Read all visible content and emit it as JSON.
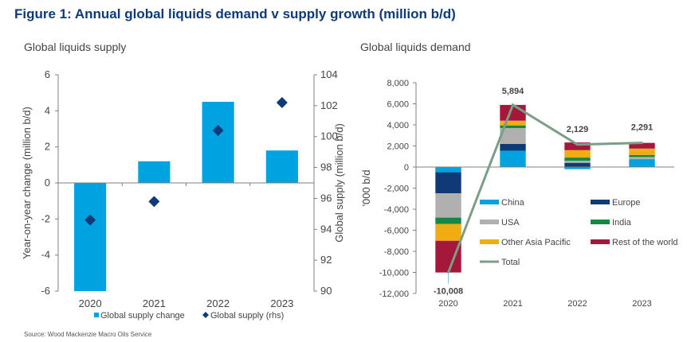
{
  "figure": {
    "title": "Figure 1: Annual global liquids demand v supply growth (million b/d)",
    "source": "Source: Wood Mackenzie Macro Oils Service"
  },
  "colors": {
    "title": "#0f3a78",
    "supply_bar": "#00a3e0",
    "supply_diamond": "#0f3a78",
    "axis": "#808080",
    "China": "#00a3e0",
    "Europe": "#0f3a78",
    "USA": "#b0b0b0",
    "India": "#138a43",
    "Other Asia Pacific": "#f0ad12",
    "Rest of the world": "#a4183c",
    "Total": "#7a9e86"
  },
  "chart_data": [
    {
      "type": "bar",
      "title": "Global liquids supply",
      "categories": [
        "2020",
        "2021",
        "2022",
        "2023"
      ],
      "series": [
        {
          "name": "Global supply change",
          "axis": "left",
          "type": "bar",
          "values": [
            -6.0,
            1.2,
            4.5,
            1.8
          ]
        },
        {
          "name": "Global supply (rhs)",
          "axis": "right",
          "type": "scatter",
          "marker": "diamond",
          "values": [
            94.6,
            95.8,
            100.4,
            102.2
          ]
        }
      ],
      "ylabel": "Year-on-year change (million b/d)",
      "ylabel_right": "Global supply (million b/d)",
      "ylim": [
        -6,
        6
      ],
      "yticks": [
        "6",
        "4",
        "2",
        "0",
        "-2",
        "-4",
        "-6"
      ],
      "ytick_values": [
        6,
        4,
        2,
        0,
        -2,
        -4,
        -6
      ],
      "ylim_right": [
        90,
        104
      ],
      "yticks_right": [
        "104",
        "102",
        "100",
        "98",
        "96",
        "94",
        "92",
        "90"
      ],
      "ytick_values_right": [
        104,
        102,
        100,
        98,
        96,
        94,
        92,
        90
      ],
      "legend": [
        "Global supply change",
        "Global supply (rhs)"
      ],
      "legend_position": "bottom",
      "grid": false
    },
    {
      "type": "bar",
      "stacked": true,
      "title": "Global liquids demand",
      "categories": [
        "2020",
        "2021",
        "2022",
        "2023"
      ],
      "series": [
        {
          "name": "China",
          "values": [
            -500,
            1550,
            -200,
            750
          ]
        },
        {
          "name": "Europe",
          "values": [
            -2000,
            650,
            400,
            0
          ]
        },
        {
          "name": "USA",
          "values": [
            -2300,
            1500,
            200,
            200
          ]
        },
        {
          "name": "India",
          "values": [
            -600,
            250,
            300,
            200
          ]
        },
        {
          "name": "Other Asia Pacific",
          "values": [
            -1600,
            450,
            700,
            600
          ]
        },
        {
          "name": "Rest of the world",
          "values": [
            -3008,
            1494,
            729,
            541
          ]
        },
        {
          "name": "Total",
          "type": "line",
          "values": [
            -10008,
            5894,
            2129,
            2291
          ]
        }
      ],
      "data_labels": [
        "-10,008",
        "5,894",
        "2,129",
        "2,291"
      ],
      "ylabel": "'000 b/d",
      "ylim": [
        -12000,
        8000
      ],
      "yticks": [
        "8,000",
        "6,000",
        "4,000",
        "2,000",
        "0",
        "-2,000",
        "-4,000",
        "-6,000",
        "-8,000",
        "-10,000",
        "-12,000"
      ],
      "ytick_values": [
        8000,
        6000,
        4000,
        2000,
        0,
        -2000,
        -4000,
        -6000,
        -8000,
        -10000,
        -12000
      ],
      "legend": [
        "China",
        "Europe",
        "USA",
        "India",
        "Other Asia Pacific",
        "Rest of the world",
        "Total"
      ],
      "legend_position": "inside-lower-right",
      "grid": false
    }
  ]
}
